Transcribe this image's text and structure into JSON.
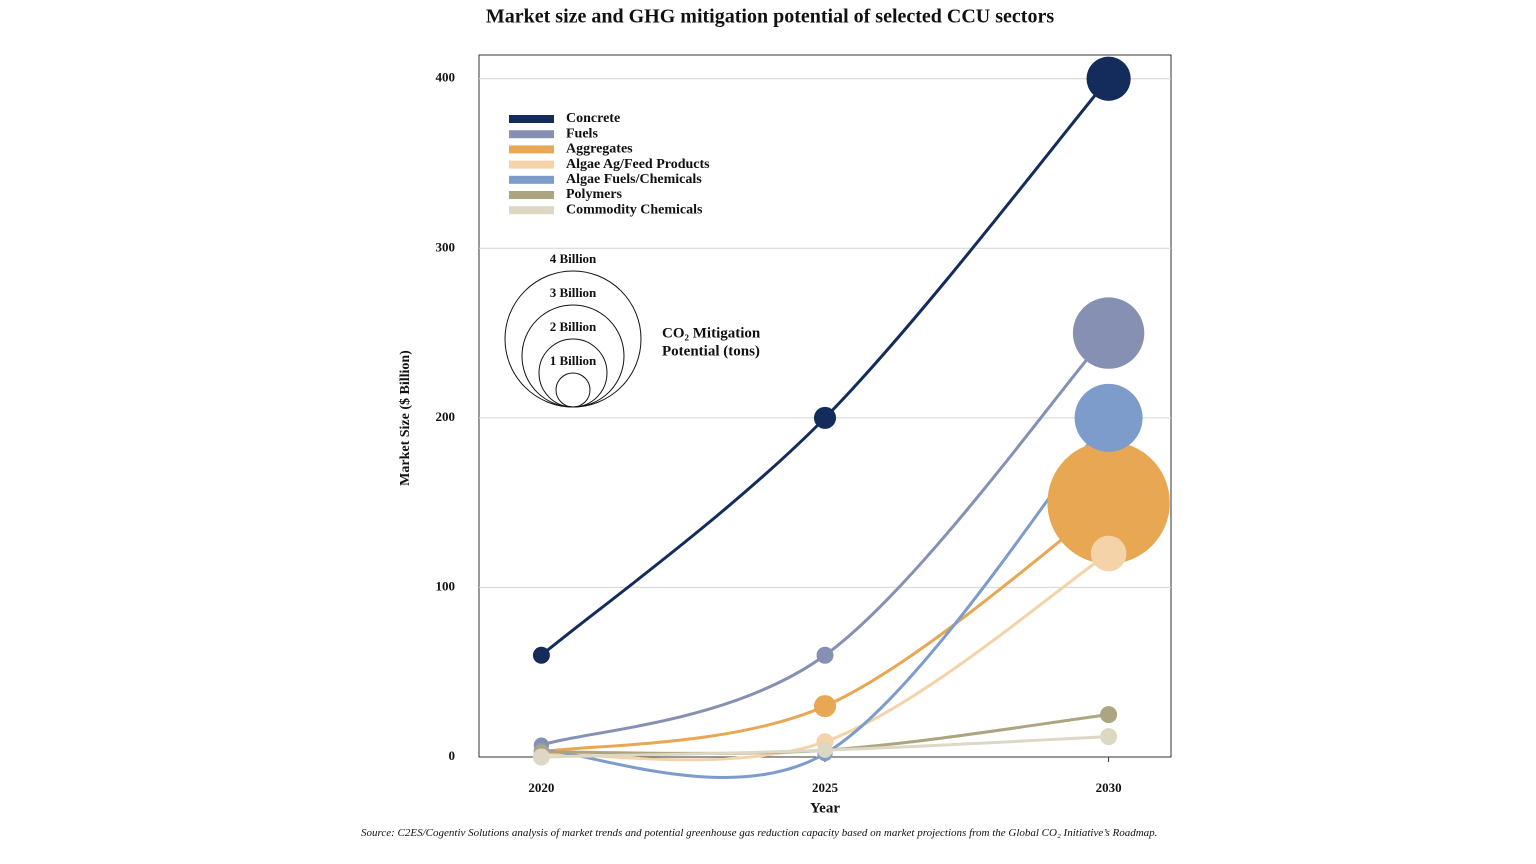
{
  "chart_data": {
    "type": "bubble-line",
    "title": "Market size and GHG mitigation potential of selected CCU sectors",
    "x_label": "Year",
    "y_label": "Market Size ($ Billion)",
    "x": [
      2020,
      2025,
      2030
    ],
    "xlim": [
      2018.9,
      2031.1
    ],
    "xticks": [
      2020,
      2025,
      2030
    ],
    "ylim": [
      0,
      414
    ],
    "yticks": [
      0,
      100,
      200,
      300,
      400
    ],
    "grid": true,
    "legend_position": "upper left",
    "series": [
      {
        "name": "Concrete",
        "color": "#142c5c",
        "values": [
          60,
          200,
          400
        ],
        "sizes": [
          0.5,
          0.65,
          1.3
        ]
      },
      {
        "name": "Fuels",
        "color": "#8590b3",
        "values": [
          7,
          60,
          250
        ],
        "sizes": [
          0.45,
          0.5,
          2.1
        ]
      },
      {
        "name": "Aggregates",
        "color": "#e8a752",
        "values": [
          3,
          30,
          150
        ],
        "sizes": [
          0.45,
          0.65,
          3.6
        ]
      },
      {
        "name": "Algae Ag/Feed Products",
        "color": "#f5d3a8",
        "values": [
          2,
          9,
          120
        ],
        "sizes": [
          0.45,
          0.5,
          1.05
        ]
      },
      {
        "name": "Algae Fuels/Chemicals",
        "color": "#7d9ccb",
        "values": [
          4,
          2,
          200
        ],
        "sizes": [
          0.45,
          0.45,
          2.0
        ]
      },
      {
        "name": "Polymers",
        "color": "#ada580",
        "values": [
          3,
          4,
          25
        ],
        "sizes": [
          0.45,
          0.45,
          0.5
        ]
      },
      {
        "name": "Commodity Chemicals",
        "color": "#ddd8c4",
        "values": [
          0,
          4,
          12
        ],
        "sizes": [
          0.5,
          0.45,
          0.5
        ]
      }
    ],
    "size_legend": {
      "title": [
        "CO₂ Mitigation",
        "Potential (tons)"
      ],
      "values": [
        {
          "value": 4,
          "label": "4 Billion"
        },
        {
          "value": 3,
          "label": "3 Billion"
        },
        {
          "value": 2,
          "label": "2 Billion"
        },
        {
          "value": 1,
          "label": "1 Billion"
        }
      ]
    },
    "source": "Source: C2ES/Cogentiv Solutions analysis of market trends and potential greenhouse gas reduction capacity based on market projections from the Global CO₂ Initiative’s Roadmap."
  }
}
